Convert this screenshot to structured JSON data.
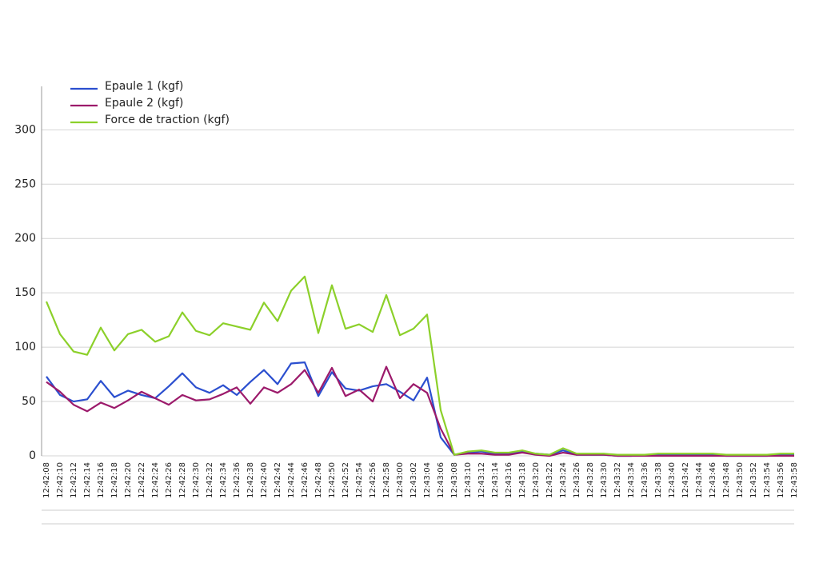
{
  "chart_data": {
    "type": "line",
    "categories": [
      "12:42:08",
      "12:42:10",
      "12:42:12",
      "12:42:14",
      "12:42:16",
      "12:42:18",
      "12:42:20",
      "12:42:22",
      "12:42:24",
      "12:42:26",
      "12:42:28",
      "12:42:30",
      "12:42:32",
      "12:42:34",
      "12:42:36",
      "12:42:38",
      "12:42:40",
      "12:42:42",
      "12:42:44",
      "12:42:46",
      "12:42:48",
      "12:42:50",
      "12:42:52",
      "12:42:54",
      "12:42:56",
      "12:42:58",
      "12:43:00",
      "12:43:02",
      "12:43:04",
      "12:43:06",
      "12:43:08",
      "12:43:10",
      "12:43:12",
      "12:43:14",
      "12:43:16",
      "12:43:18",
      "12:43:20",
      "12:43:22",
      "12:43:24",
      "12:43:26",
      "12:43:28",
      "12:43:30",
      "12:43:32",
      "12:43:34",
      "12:43:36",
      "12:43:38",
      "12:43:40",
      "12:43:42",
      "12:43:44",
      "12:43:46",
      "12:43:48",
      "12:43:50",
      "12:43:52",
      "12:43:54",
      "12:43:56",
      "12:43:58"
    ],
    "series": [
      {
        "name": "Epaule 1 (kgf)",
        "color": "#2b4fcf",
        "values": [
          73,
          56,
          50,
          52,
          69,
          54,
          60,
          56,
          53,
          64,
          76,
          63,
          58,
          65,
          56,
          68,
          79,
          66,
          85,
          86,
          55,
          77,
          62,
          60,
          64,
          66,
          59,
          51,
          72,
          17,
          1,
          3,
          4,
          2,
          2,
          4,
          2,
          1,
          5,
          1,
          1,
          1,
          0,
          0,
          1,
          1,
          1,
          1,
          1,
          1,
          0,
          0,
          0,
          0,
          1,
          1
        ]
      },
      {
        "name": "Epaule 2 (kgf)",
        "color": "#9c1a6b",
        "values": [
          68,
          59,
          47,
          41,
          49,
          44,
          51,
          59,
          53,
          47,
          56,
          51,
          52,
          57,
          63,
          48,
          63,
          58,
          66,
          79,
          58,
          81,
          55,
          61,
          50,
          82,
          53,
          66,
          58,
          25,
          1,
          2,
          2,
          1,
          1,
          3,
          1,
          0,
          3,
          1,
          1,
          1,
          0,
          0,
          0,
          0,
          0,
          0,
          0,
          0,
          0,
          0,
          0,
          0,
          0,
          0
        ]
      },
      {
        "name": "Force de traction (kgf)",
        "color": "#8cd02a",
        "values": [
          142,
          112,
          96,
          93,
          118,
          97,
          112,
          116,
          105,
          110,
          132,
          115,
          111,
          122,
          119,
          116,
          141,
          124,
          152,
          165,
          113,
          157,
          117,
          121,
          114,
          148,
          111,
          117,
          130,
          42,
          1,
          4,
          5,
          3,
          3,
          5,
          2,
          1,
          7,
          2,
          2,
          2,
          1,
          1,
          1,
          2,
          2,
          2,
          2,
          2,
          1,
          1,
          1,
          1,
          2,
          2
        ]
      }
    ],
    "ylim": [
      0,
      340
    ],
    "yticks": [
      0,
      50,
      100,
      150,
      200,
      250,
      300
    ],
    "grid": true
  }
}
